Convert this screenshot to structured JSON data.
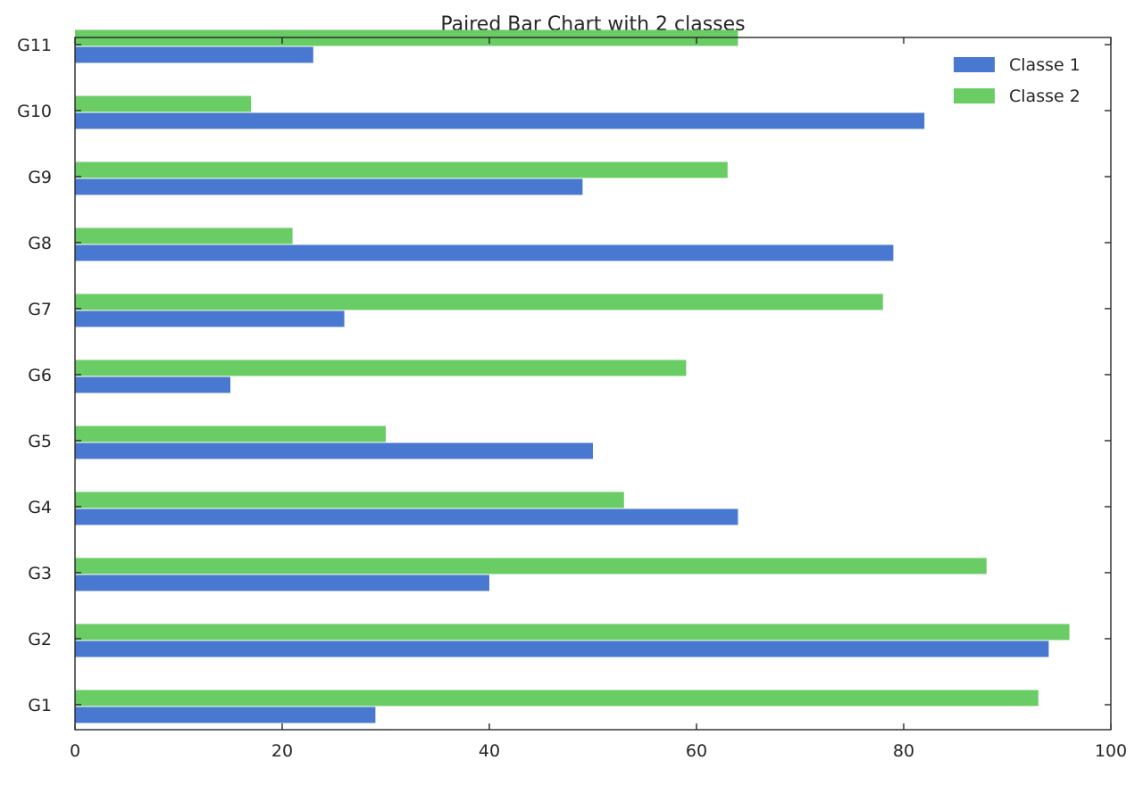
{
  "chart_data": {
    "type": "bar",
    "orientation": "horizontal",
    "title": "Paired Bar Chart with 2 classes",
    "xlabel": "",
    "ylabel": "",
    "xlim": [
      0,
      100
    ],
    "xticks": [
      0,
      20,
      40,
      60,
      80,
      100
    ],
    "categories": [
      "G1",
      "G2",
      "G3",
      "G4",
      "G5",
      "G6",
      "G7",
      "G8",
      "G9",
      "G10",
      "G11"
    ],
    "series": [
      {
        "name": "Classe 1",
        "color": "#4878CF",
        "values": [
          29,
          94,
          40,
          64,
          50,
          15,
          26,
          79,
          49,
          82,
          23
        ]
      },
      {
        "name": "Classe 2",
        "color": "#6ACC65",
        "values": [
          93,
          96,
          88,
          53,
          30,
          59,
          78,
          21,
          63,
          17,
          64
        ]
      }
    ],
    "legend": {
      "position": "top-right"
    },
    "grid": false
  }
}
